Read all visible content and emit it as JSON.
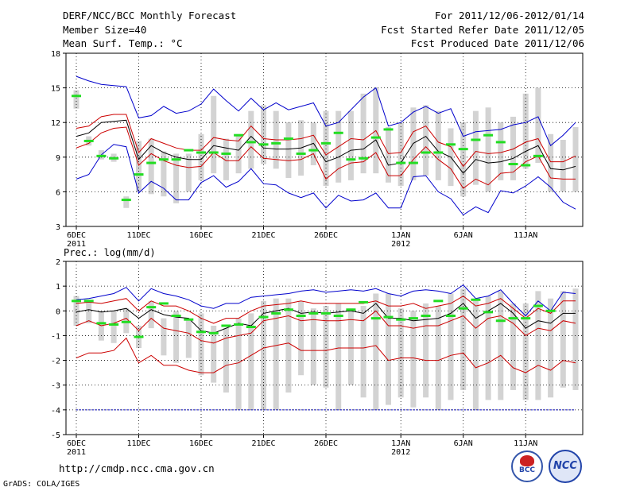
{
  "header": {
    "title": "DERF/NCC/BCC Monthly Forecast",
    "member_size": "Member Size=40",
    "variable": "Mean Surf. Temp.: °C",
    "period": "For 2011/12/06-2012/01/14",
    "start_date": "Fcst Started Refer Date 2011/12/05",
    "produced_date": "Fcst Produced Date 2011/12/06"
  },
  "footer": {
    "url": "http://cmdp.ncc.cma.gov.cn",
    "grads": "GrADS: COLA/IGES",
    "logo_bcc": "BCC",
    "logo_ncc": "NCC"
  },
  "colors": {
    "envelope": "#0000cc",
    "spread": "#cc0000",
    "mean": "#000000",
    "observed": "#22dd22",
    "boxes": "#d3d3d3"
  },
  "chart_data": [
    {
      "type": "line",
      "title": "Mean Surf. Temp.: °C",
      "ylim": [
        3,
        18
      ],
      "yticks": [
        3,
        6,
        9,
        12,
        15,
        18
      ],
      "xlim": [
        0,
        40
      ],
      "xticks": [
        {
          "day": 0,
          "label": "6DEC",
          "sub": "2011"
        },
        {
          "day": 5,
          "label": "11DEC",
          "sub": ""
        },
        {
          "day": 10,
          "label": "16DEC",
          "sub": ""
        },
        {
          "day": 15,
          "label": "21DEC",
          "sub": ""
        },
        {
          "day": 20,
          "label": "26DEC",
          "sub": ""
        },
        {
          "day": 26,
          "label": "1JAN",
          "sub": "2012"
        },
        {
          "day": 31,
          "label": "6JAN",
          "sub": ""
        },
        {
          "day": 36,
          "label": "11JAN",
          "sub": ""
        }
      ],
      "series": [
        {
          "name": "max",
          "color": "#0000cc",
          "values": [
            16.0,
            15.6,
            15.3,
            15.2,
            15.1,
            12.4,
            12.6,
            13.4,
            12.8,
            13.0,
            13.6,
            14.9,
            13.9,
            13.0,
            14.1,
            13.1,
            13.7,
            13.1,
            13.4,
            13.7,
            11.7,
            12.0,
            13.1,
            14.2,
            15.0,
            11.7,
            12.0,
            12.9,
            13.4,
            12.8,
            13.2,
            10.8,
            11.2,
            11.3,
            11.4,
            11.8,
            12.0,
            12.5,
            10.0,
            10.9,
            12.0
          ]
        },
        {
          "name": "upper",
          "color": "#cc0000",
          "values": [
            11.5,
            11.7,
            12.5,
            12.7,
            12.7,
            9.4,
            10.6,
            10.2,
            9.8,
            9.6,
            9.6,
            10.7,
            10.5,
            10.4,
            11.7,
            10.6,
            10.5,
            10.5,
            10.6,
            10.9,
            9.2,
            9.9,
            10.6,
            10.5,
            11.3,
            9.3,
            9.4,
            11.2,
            11.7,
            10.3,
            9.9,
            8.2,
            9.5,
            9.3,
            9.4,
            9.7,
            10.3,
            10.6,
            8.6,
            8.6,
            9.1
          ]
        },
        {
          "name": "mean",
          "color": "#000000",
          "values": [
            10.8,
            11.1,
            12.0,
            12.1,
            12.2,
            8.8,
            10.0,
            9.4,
            9.0,
            8.8,
            8.8,
            10.0,
            9.8,
            9.6,
            10.8,
            9.8,
            9.7,
            9.7,
            9.8,
            10.2,
            8.6,
            9.0,
            9.6,
            9.7,
            10.5,
            8.3,
            8.5,
            10.2,
            10.8,
            9.5,
            9.0,
            7.6,
            8.8,
            8.5,
            8.6,
            8.9,
            9.5,
            10.0,
            8.0,
            7.9,
            8.2
          ]
        },
        {
          "name": "lower",
          "color": "#cc0000",
          "values": [
            9.8,
            10.2,
            11.1,
            11.5,
            11.6,
            8.3,
            9.3,
            8.7,
            8.3,
            8.1,
            8.2,
            9.4,
            8.7,
            8.7,
            9.9,
            8.9,
            8.8,
            8.7,
            8.8,
            9.3,
            7.1,
            8.0,
            8.5,
            8.6,
            9.4,
            7.4,
            7.4,
            8.8,
            9.9,
            8.8,
            8.0,
            6.3,
            7.1,
            6.6,
            7.6,
            7.7,
            8.6,
            9.1,
            7.2,
            7.1,
            7.1
          ]
        },
        {
          "name": "min",
          "color": "#0000cc",
          "values": [
            7.1,
            7.5,
            9.2,
            10.1,
            9.9,
            5.9,
            6.9,
            6.3,
            5.3,
            5.3,
            6.8,
            7.4,
            6.4,
            6.9,
            8.0,
            6.7,
            6.6,
            5.9,
            5.5,
            5.9,
            4.6,
            5.7,
            5.2,
            5.3,
            5.9,
            4.6,
            4.6,
            7.3,
            7.4,
            6.0,
            5.4,
            4.0,
            4.7,
            4.2,
            6.1,
            5.9,
            6.5,
            7.3,
            6.4,
            5.1,
            4.5
          ]
        }
      ],
      "boxes": [
        [
          13.2,
          14.8
        ],
        [
          10.0,
          10.8
        ],
        [
          8.8,
          9.6
        ],
        [
          8.6,
          9.3
        ],
        [
          4.6,
          5.6
        ],
        [
          6.0,
          10.4
        ],
        [
          5.8,
          10.6
        ],
        [
          5.6,
          9.5
        ],
        [
          5.0,
          9.3
        ],
        [
          6.0,
          9.3
        ],
        [
          7.0,
          11.0
        ],
        [
          7.6,
          14.3
        ],
        [
          7.0,
          10.6
        ],
        [
          7.6,
          11.0
        ],
        [
          8.0,
          13.0
        ],
        [
          8.4,
          13.5
        ],
        [
          8.0,
          13.0
        ],
        [
          7.2,
          12.0
        ],
        [
          7.4,
          12.2
        ],
        [
          8.3,
          12.0
        ],
        [
          6.5,
          13.0
        ],
        [
          6.8,
          13.0
        ],
        [
          7.0,
          13.0
        ],
        [
          7.6,
          14.5
        ],
        [
          7.6,
          15.0
        ],
        [
          6.8,
          11.6
        ],
        [
          6.5,
          12.0
        ],
        [
          7.0,
          13.3
        ],
        [
          7.4,
          13.5
        ],
        [
          7.0,
          13.0
        ],
        [
          6.5,
          11.5
        ],
        [
          5.6,
          12.0
        ],
        [
          6.6,
          13.0
        ],
        [
          6.0,
          13.3
        ],
        [
          7.0,
          12.0
        ],
        [
          7.0,
          12.5
        ],
        [
          8.0,
          14.5
        ],
        [
          8.5,
          15.0
        ],
        [
          6.0,
          11.0
        ],
        [
          6.0,
          10.5
        ],
        [
          6.0,
          11.6
        ]
      ],
      "observed": [
        14.3,
        10.4,
        9.1,
        8.9,
        5.3,
        7.5,
        8.5,
        8.8,
        8.8,
        9.6,
        9.4,
        9.4,
        9.3,
        10.9,
        10.3,
        10.1,
        10.2,
        10.6,
        9.3,
        9.6,
        10.2,
        11.1,
        8.8,
        8.9,
        10.7,
        11.4,
        8.5,
        8.5,
        9.4,
        9.4,
        10.1,
        9.7,
        10.5,
        10.9,
        10.3,
        8.4,
        8.3,
        9.1
      ]
    },
    {
      "type": "line",
      "title": "Prec.: log(mm/d)",
      "ylim": [
        -5,
        2
      ],
      "yticks": [
        -5,
        -4,
        -3,
        -2,
        -1,
        0,
        1,
        2
      ],
      "xlim": [
        0,
        40
      ],
      "series": [
        {
          "name": "max",
          "color": "#0000cc",
          "values": [
            0.45,
            0.5,
            0.6,
            0.7,
            0.95,
            0.4,
            0.9,
            0.7,
            0.6,
            0.45,
            0.2,
            0.1,
            0.3,
            0.3,
            0.55,
            0.6,
            0.65,
            0.7,
            0.8,
            0.85,
            0.75,
            0.8,
            0.85,
            0.8,
            0.9,
            0.7,
            0.6,
            0.8,
            0.85,
            0.8,
            0.7,
            1.05,
            0.5,
            0.6,
            0.85,
            0.3,
            -0.2,
            0.4,
            0.0,
            0.75,
            0.7
          ]
        },
        {
          "name": "upper",
          "color": "#cc0000",
          "values": [
            0.3,
            0.35,
            0.3,
            0.4,
            0.5,
            0.0,
            0.4,
            0.2,
            0.2,
            0.0,
            -0.3,
            -0.5,
            -0.3,
            -0.3,
            0.0,
            0.2,
            0.25,
            0.3,
            0.4,
            0.3,
            0.3,
            0.3,
            0.3,
            0.3,
            0.4,
            0.2,
            0.2,
            0.3,
            0.1,
            0.2,
            0.3,
            0.6,
            0.2,
            0.3,
            0.5,
            0.1,
            -0.3,
            0.1,
            -0.1,
            0.4,
            0.4
          ]
        },
        {
          "name": "mean",
          "color": "#000000",
          "values": [
            -0.05,
            0.05,
            -0.05,
            0.0,
            0.1,
            -0.3,
            0.05,
            -0.15,
            -0.25,
            -0.3,
            -0.8,
            -0.9,
            -0.7,
            -0.5,
            -0.6,
            -0.1,
            0.0,
            0.1,
            -0.1,
            -0.05,
            -0.1,
            -0.05,
            0.0,
            -0.1,
            0.3,
            -0.3,
            -0.3,
            -0.4,
            -0.35,
            -0.3,
            -0.1,
            0.3,
            -0.3,
            0.0,
            0.3,
            -0.1,
            -0.7,
            -0.4,
            -0.5,
            -0.1,
            -0.1
          ]
        },
        {
          "name": "lower",
          "color": "#cc0000",
          "values": [
            -0.6,
            -0.4,
            -0.6,
            -0.5,
            -0.3,
            -0.8,
            -0.3,
            -0.7,
            -0.8,
            -0.9,
            -1.2,
            -1.3,
            -1.1,
            -1.0,
            -0.9,
            -0.4,
            -0.3,
            -0.2,
            -0.4,
            -0.35,
            -0.4,
            -0.4,
            -0.35,
            -0.4,
            0.0,
            -0.6,
            -0.6,
            -0.7,
            -0.6,
            -0.6,
            -0.4,
            -0.2,
            -0.7,
            -0.3,
            -0.2,
            -0.5,
            -1.0,
            -0.7,
            -0.8,
            -0.4,
            -0.5
          ]
        },
        {
          "name": "min",
          "color": "#cc0000",
          "values": [
            -1.9,
            -1.7,
            -1.7,
            -1.6,
            -1.1,
            -2.1,
            -1.8,
            -2.2,
            -2.2,
            -2.4,
            -2.5,
            -2.5,
            -2.2,
            -2.1,
            -1.8,
            -1.5,
            -1.4,
            -1.3,
            -1.6,
            -1.6,
            -1.6,
            -1.5,
            -1.5,
            -1.5,
            -1.4,
            -2.0,
            -1.9,
            -1.9,
            -2.0,
            -2.0,
            -1.8,
            -1.7,
            -2.3,
            -2.1,
            -1.8,
            -2.3,
            -2.5,
            -2.2,
            -2.4,
            -2.0,
            -2.1
          ]
        },
        {
          "name": "floor",
          "color": "#0000cc",
          "values": [
            -4,
            -4,
            -4,
            -4,
            -4,
            -4,
            -4,
            -4,
            -4,
            -4,
            -4,
            -4,
            -4,
            -4,
            -4,
            -4,
            -4,
            -4,
            -4,
            -4,
            -4,
            -4,
            -4,
            -4,
            -4,
            -4,
            -4,
            -4,
            -4,
            -4,
            -4,
            -4,
            -4,
            -4,
            -4,
            -4,
            -4,
            -4,
            -4,
            -4,
            -4
          ]
        }
      ],
      "boxes": [
        [
          -0.6,
          0.6
        ],
        [
          -0.5,
          0.4
        ],
        [
          -1.2,
          0.0
        ],
        [
          -1.3,
          0.0
        ],
        [
          -0.9,
          0.1
        ],
        [
          -1.5,
          -0.6
        ],
        [
          -0.7,
          0.4
        ],
        [
          -1.8,
          -0.3
        ],
        [
          -2.1,
          0.0
        ],
        [
          -1.9,
          -0.4
        ],
        [
          -2.6,
          -0.1
        ],
        [
          -2.9,
          -0.6
        ],
        [
          -3.3,
          -0.7
        ],
        [
          -4.0,
          -0.3
        ],
        [
          -4.0,
          -0.1
        ],
        [
          -4.0,
          0.4
        ],
        [
          -4.0,
          0.5
        ],
        [
          -3.3,
          0.5
        ],
        [
          -2.6,
          0.4
        ],
        [
          -3.0,
          0.1
        ],
        [
          -3.1,
          0.2
        ],
        [
          -4.0,
          0.3
        ],
        [
          -3.0,
          0.1
        ],
        [
          -3.5,
          0.2
        ],
        [
          -4.0,
          0.7
        ],
        [
          -3.8,
          0.7
        ],
        [
          -3.5,
          0.1
        ],
        [
          -3.9,
          0.0
        ],
        [
          -3.5,
          0.3
        ],
        [
          -4.0,
          0.2
        ],
        [
          -3.6,
          0.7
        ],
        [
          -3.2,
          0.9
        ],
        [
          -4.0,
          0.4
        ],
        [
          -3.6,
          0.6
        ],
        [
          -3.6,
          0.8
        ],
        [
          -3.2,
          0.3
        ],
        [
          -3.6,
          0.3
        ],
        [
          -3.6,
          0.8
        ],
        [
          -3.5,
          0.5
        ],
        [
          -3.1,
          0.8
        ],
        [
          -3.2,
          0.9
        ]
      ],
      "observed": [
        0.4,
        0.4,
        -0.5,
        -0.55,
        -0.45,
        -1.05,
        0.15,
        0.3,
        -0.2,
        -0.35,
        -0.85,
        -0.9,
        -0.6,
        -0.55,
        -0.65,
        -0.25,
        -0.1,
        0.05,
        -0.2,
        -0.1,
        -0.1,
        -0.2,
        0.05,
        0.35,
        -0.3,
        -0.25,
        -0.35,
        -0.3,
        -0.2,
        0.4,
        -0.2,
        0.1,
        0.45,
        -0.05,
        -0.4,
        -0.3,
        -0.3,
        0.2,
        0.0
      ]
    }
  ]
}
